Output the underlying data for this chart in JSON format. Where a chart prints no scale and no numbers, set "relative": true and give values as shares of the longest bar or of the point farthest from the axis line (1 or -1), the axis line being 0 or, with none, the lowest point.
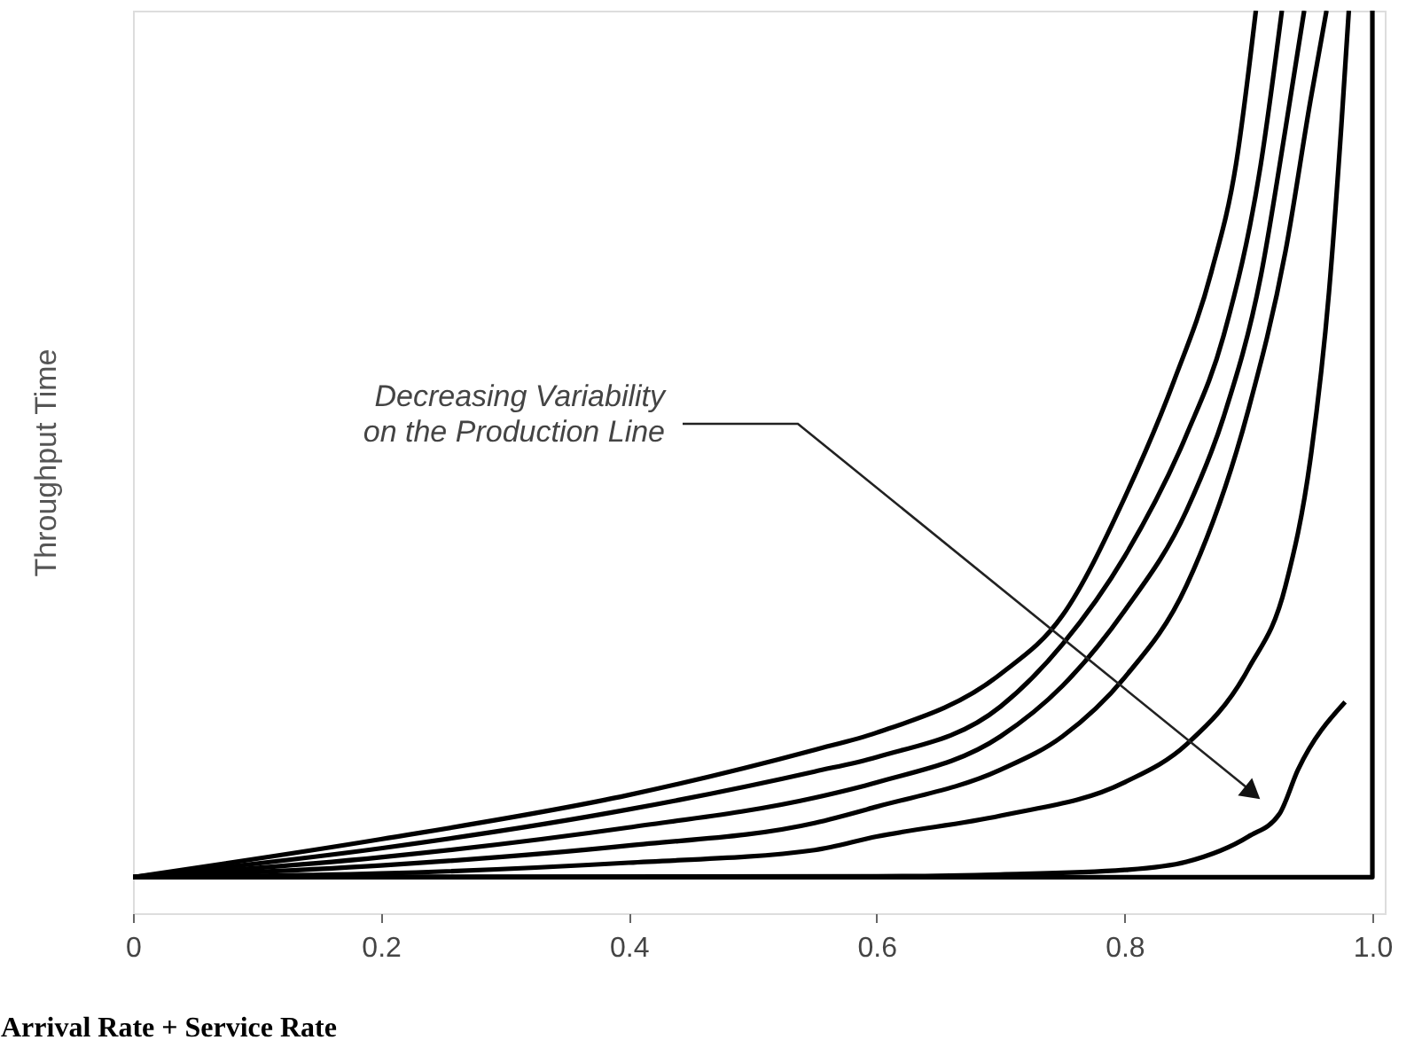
{
  "chart_data": {
    "type": "line",
    "relative": true,
    "xlabel": "Arrival Rate + Service Rate",
    "ylabel": "Throughput Time",
    "xlim": [
      0,
      1.01
    ],
    "xticks": [
      0,
      0.2,
      0.4,
      0.6,
      0.8,
      {
        "value": 1,
        "label": "1.0"
      }
    ],
    "grid": false,
    "annotations": [
      "Decreasing Variability\non the Production Line"
    ],
    "series": [
      {
        "color": "#000000",
        "x": [
          0,
          0.2,
          0.4,
          0.55,
          0.6,
          0.7,
          0.75,
          0.8,
          0.84,
          0.87,
          0.89,
          0.906
        ],
        "values": [
          0.04,
          0.082,
          0.131,
          0.181,
          0.2,
          0.265,
          0.33,
          0.46,
          0.59,
          0.71,
          0.83,
          1
        ]
      },
      {
        "color": "#000000",
        "x": [
          0,
          0.2,
          0.4,
          0.55,
          0.6,
          0.7,
          0.75,
          0.8,
          0.85,
          0.88,
          0.91,
          0.927
        ],
        "values": [
          0.04,
          0.072,
          0.115,
          0.157,
          0.173,
          0.229,
          0.298,
          0.395,
          0.53,
          0.64,
          0.83,
          1
        ]
      },
      {
        "color": "#000000",
        "x": [
          0,
          0.2,
          0.4,
          0.55,
          0.6,
          0.7,
          0.75,
          0.8,
          0.85,
          0.88,
          0.91,
          0.93,
          0.945
        ],
        "values": [
          0.04,
          0.062,
          0.095,
          0.128,
          0.145,
          0.196,
          0.252,
          0.335,
          0.446,
          0.55,
          0.706,
          0.87,
          1
        ]
      },
      {
        "color": "#000000",
        "x": [
          0,
          0.2,
          0.4,
          0.55,
          0.6,
          0.7,
          0.75,
          0.8,
          0.85,
          0.9,
          0.93,
          0.95,
          0.963
        ],
        "values": [
          0.04,
          0.053,
          0.075,
          0.1,
          0.118,
          0.159,
          0.196,
          0.261,
          0.363,
          0.558,
          0.734,
          0.9,
          1
        ]
      },
      {
        "color": "#000000",
        "x": [
          0,
          0.2,
          0.4,
          0.55,
          0.6,
          0.7,
          0.8,
          0.85,
          0.9,
          0.93,
          0.95,
          0.965,
          0.975,
          0.981
        ],
        "values": [
          0.04,
          0.044,
          0.056,
          0.07,
          0.085,
          0.108,
          0.145,
          0.187,
          0.271,
          0.363,
          0.503,
          0.688,
          0.873,
          1
        ]
      },
      {
        "color": "#000000",
        "x": [
          0,
          0.6,
          0.7,
          0.8,
          0.85,
          0.9,
          0.925,
          0.94,
          0.978
        ],
        "values": [
          0.04,
          0.041,
          0.043,
          0.048,
          0.057,
          0.085,
          0.11,
          0.159,
          0.234
        ]
      },
      {
        "color": "#000000",
        "x": [
          0,
          1,
          1
        ],
        "values": [
          0.04,
          0.04,
          1
        ]
      }
    ]
  }
}
